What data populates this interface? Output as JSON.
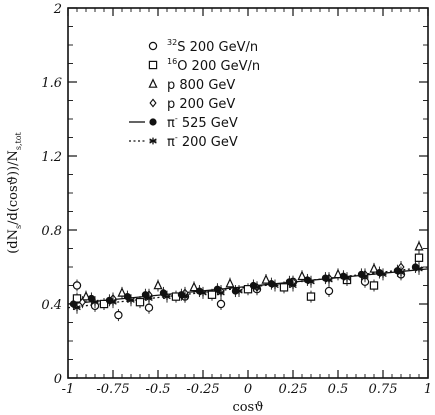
{
  "chart_data": {
    "type": "scatter",
    "xlabel": "cosϑ",
    "ylabel": "(dN_s/d(cosϑ))/N_s,tot",
    "xlim": [
      -1,
      1
    ],
    "ylim": [
      0,
      2
    ],
    "x_ticks": [
      -1,
      -0.75,
      -0.5,
      -0.25,
      0,
      0.25,
      0.5,
      0.75,
      1
    ],
    "x_tick_labels": [
      "-1",
      "-0.75",
      "-0.5",
      "-0.25",
      "0",
      "0.25",
      "0.5",
      "0.75",
      "1"
    ],
    "y_ticks": [
      0,
      0.4,
      0.8,
      1.2,
      1.6,
      2
    ],
    "y_tick_labels": [
      "0",
      "0.4",
      "0.8",
      "1.2",
      "1.6",
      "2"
    ],
    "legend_position": "top-center",
    "series": [
      {
        "name": "32S 200 GeV/n",
        "nucleus_mass": "32",
        "label_main": "S 200 GeV/n",
        "marker": "open-circle",
        "x": [
          -0.95,
          -0.85,
          -0.72,
          -0.55,
          -0.35,
          -0.15,
          0.05,
          0.25,
          0.45,
          0.65,
          0.85
        ],
        "y": [
          0.5,
          0.39,
          0.34,
          0.38,
          0.44,
          0.4,
          0.48,
          0.52,
          0.47,
          0.52,
          0.56
        ]
      },
      {
        "name": "16O 200 GeV/n",
        "nucleus_mass": "16",
        "label_main": "O 200 GeV/n",
        "marker": "open-square",
        "x": [
          -0.95,
          -0.8,
          -0.6,
          -0.4,
          -0.2,
          0.0,
          0.2,
          0.35,
          0.55,
          0.7,
          0.95
        ],
        "y": [
          0.43,
          0.4,
          0.41,
          0.44,
          0.45,
          0.48,
          0.49,
          0.44,
          0.53,
          0.5,
          0.65
        ]
      },
      {
        "name": "p 800 GeV",
        "marker": "open-triangle",
        "x": [
          -0.9,
          -0.7,
          -0.5,
          -0.3,
          -0.1,
          0.1,
          0.3,
          0.5,
          0.7,
          0.95
        ],
        "y": [
          0.44,
          0.46,
          0.5,
          0.49,
          0.51,
          0.53,
          0.55,
          0.56,
          0.59,
          0.71
        ]
      },
      {
        "name": "p 200 GeV",
        "marker": "open-diamond",
        "x": [
          -0.92,
          -0.75,
          -0.55,
          -0.35,
          -0.15,
          0.05,
          0.25,
          0.45,
          0.65,
          0.85
        ],
        "y": [
          0.41,
          0.43,
          0.45,
          0.46,
          0.47,
          0.49,
          0.52,
          0.54,
          0.56,
          0.6
        ]
      },
      {
        "name": "π⁻ 525 GeV",
        "label_main": "π",
        "label_sup": "-",
        "label_rest": " 525 GeV",
        "marker": "filled-circle",
        "line": "solid",
        "x": [
          -0.97,
          -0.87,
          -0.77,
          -0.67,
          -0.57,
          -0.47,
          -0.37,
          -0.27,
          -0.17,
          -0.07,
          0.03,
          0.13,
          0.23,
          0.33,
          0.43,
          0.53,
          0.63,
          0.73,
          0.83,
          0.93
        ],
        "y": [
          0.4,
          0.43,
          0.42,
          0.44,
          0.45,
          0.46,
          0.45,
          0.47,
          0.48,
          0.47,
          0.5,
          0.51,
          0.52,
          0.53,
          0.54,
          0.55,
          0.56,
          0.57,
          0.58,
          0.6
        ],
        "fit": {
          "x": [
            -1,
            1
          ],
          "y": [
            0.4,
            0.59
          ]
        }
      },
      {
        "name": "π⁻ 200 GeV",
        "label_main": "π",
        "label_sup": "-",
        "label_rest": " 200 GeV",
        "marker": "asterisk",
        "line": "dotted",
        "x": [
          -0.95,
          -0.85,
          -0.75,
          -0.65,
          -0.55,
          -0.45,
          -0.35,
          -0.25,
          -0.15,
          -0.05,
          0.05,
          0.15,
          0.25,
          0.35,
          0.45,
          0.55,
          0.65,
          0.75,
          0.85,
          0.95
        ],
        "y": [
          0.38,
          0.41,
          0.41,
          0.42,
          0.43,
          0.44,
          0.44,
          0.46,
          0.46,
          0.47,
          0.49,
          0.5,
          0.5,
          0.52,
          0.53,
          0.54,
          0.55,
          0.56,
          0.57,
          0.59
        ],
        "fit": {
          "x": [
            -1,
            1
          ],
          "y": [
            0.38,
            0.6
          ]
        }
      }
    ]
  }
}
